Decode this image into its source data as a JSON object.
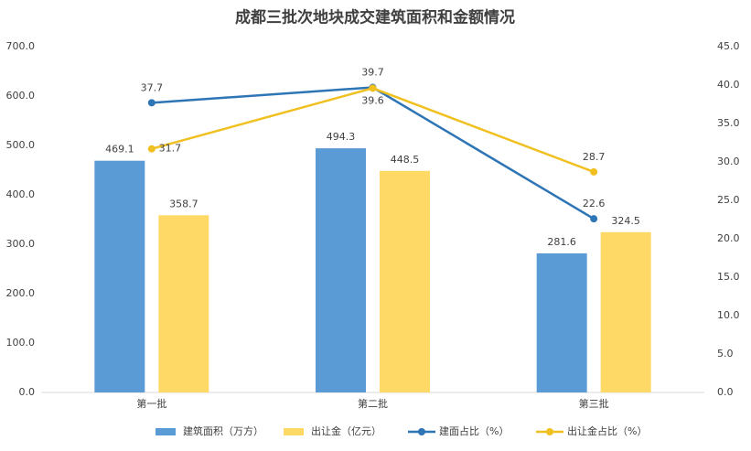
{
  "chart_data": {
    "type": "bar-line",
    "title": "成都三批次地块成交建筑面积和金额情况",
    "categories": [
      "第一批",
      "第二批",
      "第三批"
    ],
    "series": [
      {
        "name": "建筑面积（万方）",
        "type": "bar",
        "color": "#5b9bd5",
        "values": [
          469.1,
          494.3,
          281.6
        ]
      },
      {
        "name": "出让金（亿元）",
        "type": "bar",
        "color": "#ffd966",
        "values": [
          358.7,
          448.5,
          324.5
        ]
      },
      {
        "name": "建面占比（%）",
        "type": "line",
        "axis": "y2",
        "color": "#2e75b6",
        "values": [
          37.7,
          39.7,
          22.6
        ]
      },
      {
        "name": "出让金占比（%）",
        "type": "line",
        "axis": "y2",
        "color": "#f0c020",
        "values": [
          31.7,
          39.6,
          28.7
        ]
      }
    ],
    "ylim": [
      0,
      700
    ],
    "yticks": [
      {
        "value": 0,
        "label": "0.0"
      },
      {
        "value": 100,
        "label": "100.0"
      },
      {
        "value": 200,
        "label": "200.0"
      },
      {
        "value": 300,
        "label": "300.0"
      },
      {
        "value": 400,
        "label": "400.0"
      },
      {
        "value": 500,
        "label": "500.0"
      },
      {
        "value": 600,
        "label": "600.0"
      },
      {
        "value": 700,
        "label": "700.0"
      }
    ],
    "y2lim": [
      0,
      45
    ],
    "y2ticks": [
      {
        "value": 0,
        "label": "0.0"
      },
      {
        "value": 5,
        "label": "5.0"
      },
      {
        "value": 10,
        "label": "10.0"
      },
      {
        "value": 15,
        "label": "15.0"
      },
      {
        "value": 20,
        "label": "20.0"
      },
      {
        "value": 25,
        "label": "25.0"
      },
      {
        "value": 30,
        "label": "30.0"
      },
      {
        "value": 35,
        "label": "35.0"
      },
      {
        "value": 40,
        "label": "40.0"
      },
      {
        "value": 45,
        "label": "45.0"
      }
    ]
  }
}
